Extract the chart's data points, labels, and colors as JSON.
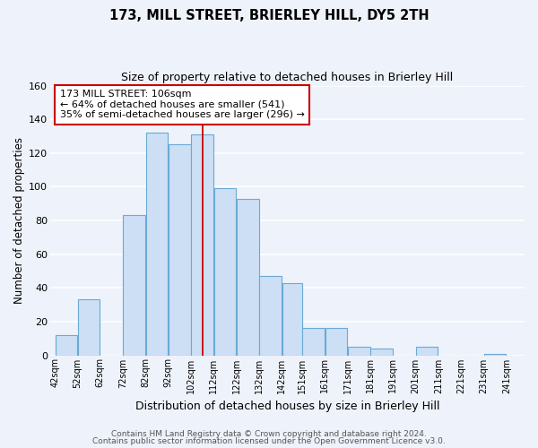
{
  "title": "173, MILL STREET, BRIERLEY HILL, DY5 2TH",
  "subtitle": "Size of property relative to detached houses in Brierley Hill",
  "xlabel": "Distribution of detached houses by size in Brierley Hill",
  "ylabel": "Number of detached properties",
  "bar_left_edges": [
    42,
    52,
    62,
    72,
    82,
    92,
    102,
    112,
    122,
    132,
    142,
    151,
    161,
    171,
    181,
    191,
    201,
    211,
    221,
    231
  ],
  "bar_widths": [
    10,
    10,
    10,
    10,
    10,
    10,
    10,
    10,
    10,
    10,
    9,
    10,
    10,
    10,
    10,
    10,
    10,
    10,
    10,
    10
  ],
  "bar_heights": [
    12,
    33,
    0,
    83,
    132,
    125,
    131,
    99,
    93,
    47,
    43,
    16,
    16,
    5,
    4,
    0,
    5,
    0,
    0,
    1
  ],
  "bar_color": "#ccdff5",
  "bar_edgecolor": "#6aaad4",
  "tick_labels": [
    "42sqm",
    "52sqm",
    "62sqm",
    "72sqm",
    "82sqm",
    "92sqm",
    "102sqm",
    "112sqm",
    "122sqm",
    "132sqm",
    "142sqm",
    "151sqm",
    "161sqm",
    "171sqm",
    "181sqm",
    "191sqm",
    "201sqm",
    "211sqm",
    "221sqm",
    "231sqm",
    "241sqm"
  ],
  "ylim": [
    0,
    160
  ],
  "yticks": [
    0,
    20,
    40,
    60,
    80,
    100,
    120,
    140,
    160
  ],
  "vline_x": 107,
  "vline_color": "#cc0000",
  "annotation_lines": [
    "173 MILL STREET: 106sqm",
    "← 64% of detached houses are smaller (541)",
    "35% of semi-detached houses are larger (296) →"
  ],
  "footer1": "Contains HM Land Registry data © Crown copyright and database right 2024.",
  "footer2": "Contains public sector information licensed under the Open Government Licence v3.0.",
  "background_color": "#eef2fa",
  "grid_color": "#ffffff",
  "title_fontsize": 10.5,
  "subtitle_fontsize": 9,
  "xlabel_fontsize": 9,
  "ylabel_fontsize": 8.5,
  "tick_fontsize": 7,
  "annotation_fontsize": 8,
  "footer_fontsize": 6.5
}
